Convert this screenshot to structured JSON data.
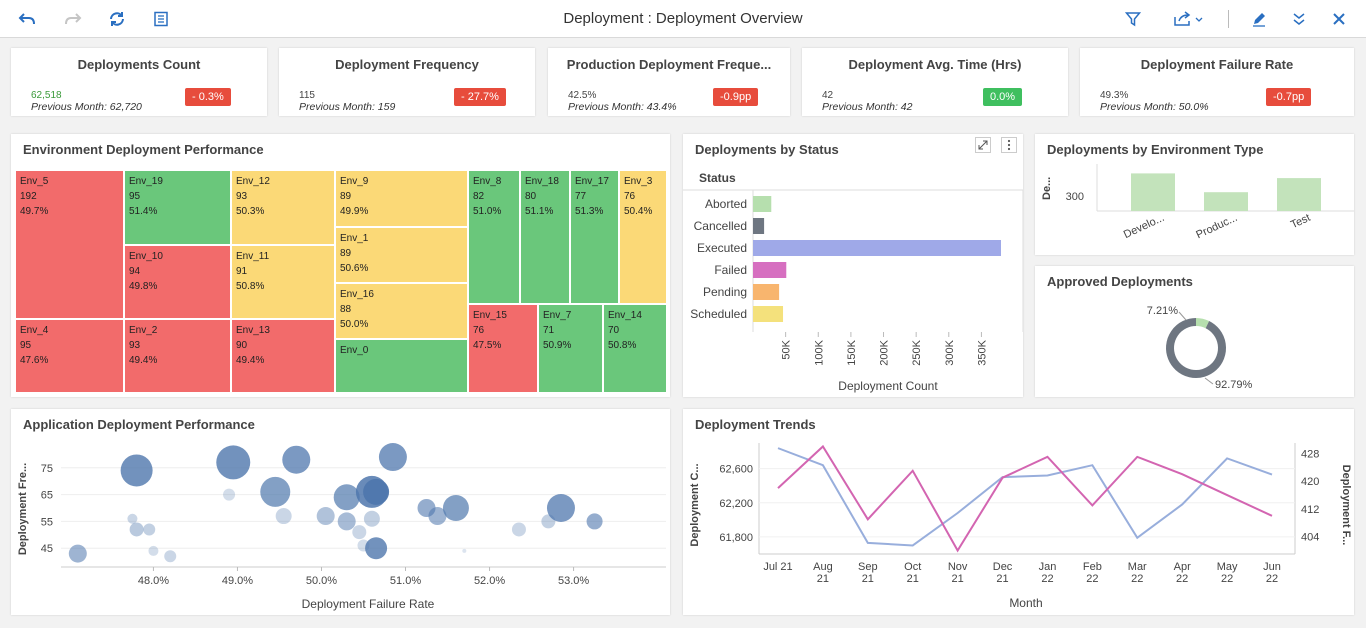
{
  "header": {
    "title": "Deployment : Deployment Overview"
  },
  "kpis": [
    {
      "title": "Deployments Count",
      "value": "62,518",
      "previous": "Previous Month: 62,720",
      "delta": "- 0.3%",
      "delta_color": "#e74c3c",
      "value_color": "#3a9a3a"
    },
    {
      "title": "Deployment Frequency",
      "value": "115",
      "previous": "Previous Month: 159",
      "delta": "- 27.7%",
      "delta_color": "#e74c3c",
      "value_color": "#444"
    },
    {
      "title": "Production Deployment Freque...",
      "value": "42.5%",
      "previous": "Previous Month: 43.4%",
      "delta": "-0.9pp",
      "delta_color": "#e74c3c",
      "value_color": "#444"
    },
    {
      "title": "Deployment Avg. Time (Hrs)",
      "value": "42",
      "previous": "Previous Month: 42",
      "delta": "0.0%",
      "delta_color": "#3fbf5f",
      "value_color": "#444"
    },
    {
      "title": "Deployment Failure Rate",
      "value": "49.3%",
      "previous": "Previous Month: 50.0%",
      "delta": "-0.7pp",
      "delta_color": "#e74c3c",
      "value_color": "#444"
    }
  ],
  "env_perf": {
    "title": "Environment Deployment Performance",
    "cells": [
      {
        "name": "Env_5",
        "count": "192",
        "rate": "49.7%"
      },
      {
        "name": "Env_19",
        "count": "95",
        "rate": "51.4%"
      },
      {
        "name": "Env_10",
        "count": "94",
        "rate": "49.8%"
      },
      {
        "name": "Env_4",
        "count": "95",
        "rate": "47.6%"
      },
      {
        "name": "Env_2",
        "count": "93",
        "rate": "49.4%"
      },
      {
        "name": "Env_12",
        "count": "93",
        "rate": "50.3%"
      },
      {
        "name": "Env_11",
        "count": "91",
        "rate": "50.8%"
      },
      {
        "name": "Env_13",
        "count": "90",
        "rate": "49.4%"
      },
      {
        "name": "Env_9",
        "count": "89",
        "rate": "49.9%"
      },
      {
        "name": "Env_1",
        "count": "89",
        "rate": "50.6%"
      },
      {
        "name": "Env_16",
        "count": "88",
        "rate": "50.0%"
      },
      {
        "name": "Env_0",
        "count": "",
        "rate": ""
      },
      {
        "name": "Env_8",
        "count": "82",
        "rate": "51.0%"
      },
      {
        "name": "Env_18",
        "count": "80",
        "rate": "51.1%"
      },
      {
        "name": "Env_17",
        "count": "77",
        "rate": "51.3%"
      },
      {
        "name": "Env_3",
        "count": "76",
        "rate": "50.4%"
      },
      {
        "name": "Env_15",
        "count": "76",
        "rate": "47.5%"
      },
      {
        "name": "Env_7",
        "count": "71",
        "rate": "50.9%"
      },
      {
        "name": "Env_14",
        "count": "70",
        "rate": "50.8%"
      }
    ]
  },
  "status_chart": {
    "title": "Deployments by Status",
    "column_header": "Status",
    "xlabel": "Deployment Count",
    "ticks": [
      "50K",
      "100K",
      "150K",
      "200K",
      "250K",
      "300K",
      "350K"
    ]
  },
  "env_type": {
    "title": "Deployments by Environment Type",
    "ylabel": "De...",
    "ytick": "300",
    "categories": [
      "Develo...",
      "Produc...",
      "Test"
    ]
  },
  "approved": {
    "title": "Approved Deployments",
    "small_label": "7.21%",
    "large_label": "92.79%"
  },
  "app_perf": {
    "title": "Application Deployment Performance",
    "ylabel": "Deployment Fre...",
    "xlabel": "Deployment Failure Rate",
    "yticks": [
      "75",
      "65",
      "55",
      "45"
    ],
    "xticks": [
      "48.0%",
      "49.0%",
      "50.0%",
      "51.0%",
      "52.0%",
      "53.0%"
    ]
  },
  "trends": {
    "title": "Deployment Trends",
    "ylabel_left": "Deployment C...",
    "ylabel_right": "Deployment F...",
    "xlabel": "Month",
    "left_ticks": [
      "62,600",
      "62,200",
      "61,800"
    ],
    "right_ticks": [
      "428",
      "420",
      "412",
      "404"
    ],
    "months": [
      [
        "Jul 21",
        ""
      ],
      [
        "Aug",
        "21"
      ],
      [
        "Sep",
        "21"
      ],
      [
        "Oct",
        "21"
      ],
      [
        "Nov",
        "21"
      ],
      [
        "Dec",
        "21"
      ],
      [
        "Jan",
        "22"
      ],
      [
        "Feb",
        "22"
      ],
      [
        "Mar",
        "22"
      ],
      [
        "Apr",
        "22"
      ],
      [
        "May",
        "22"
      ],
      [
        "Jun",
        "22"
      ]
    ]
  },
  "chart_data": [
    {
      "type": "bar",
      "title": "Deployments by Status",
      "orientation": "horizontal",
      "categories": [
        "Aborted",
        "Cancelled",
        "Executed",
        "Failed",
        "Pending",
        "Scheduled"
      ],
      "values": [
        28000,
        17000,
        380000,
        51000,
        40000,
        46000
      ],
      "colors": [
        "#b6dfae",
        "#6e7681",
        "#9fa9e8",
        "#d66fc0",
        "#f8b56e",
        "#f4e17c"
      ],
      "xlabel": "Deployment Count",
      "xlim": [
        0,
        380000
      ]
    },
    {
      "type": "bar",
      "title": "Deployments by Environment Type",
      "categories": [
        "Develo...",
        "Produc...",
        "Test"
      ],
      "values": [
        330,
        290,
        320
      ],
      "ylabel": "De...",
      "ylim": [
        250,
        350
      ]
    },
    {
      "type": "pie",
      "title": "Approved Deployments",
      "labels": [
        "7.21%",
        "92.79%"
      ],
      "values": [
        7.21,
        92.79
      ],
      "colors": [
        "#b6dfae",
        "#6e7681"
      ]
    },
    {
      "type": "scatter",
      "title": "Application Deployment Performance",
      "xlabel": "Deployment Failure Rate",
      "ylabel": "Deployment Fre...",
      "xlim": [
        46.9,
        54.1
      ],
      "ylim": [
        38,
        82
      ],
      "points": [
        {
          "x": 47.1,
          "y": 43,
          "s": 9,
          "o": 0.55
        },
        {
          "x": 47.8,
          "y": 74,
          "s": 16,
          "o": 0.8
        },
        {
          "x": 47.75,
          "y": 56,
          "s": 5,
          "o": 0.3
        },
        {
          "x": 47.8,
          "y": 52,
          "s": 7,
          "o": 0.4
        },
        {
          "x": 47.95,
          "y": 52,
          "s": 6,
          "o": 0.35
        },
        {
          "x": 48.0,
          "y": 44,
          "s": 5,
          "o": 0.25
        },
        {
          "x": 48.2,
          "y": 42,
          "s": 6,
          "o": 0.3
        },
        {
          "x": 48.9,
          "y": 65,
          "s": 6,
          "o": 0.25
        },
        {
          "x": 48.95,
          "y": 77,
          "s": 17,
          "o": 0.8
        },
        {
          "x": 49.45,
          "y": 66,
          "s": 15,
          "o": 0.7
        },
        {
          "x": 49.55,
          "y": 57,
          "s": 8,
          "o": 0.3
        },
        {
          "x": 49.7,
          "y": 78,
          "s": 14,
          "o": 0.75
        },
        {
          "x": 50.05,
          "y": 57,
          "s": 9,
          "o": 0.45
        },
        {
          "x": 50.3,
          "y": 55,
          "s": 9,
          "o": 0.5
        },
        {
          "x": 50.3,
          "y": 64,
          "s": 13,
          "o": 0.7
        },
        {
          "x": 50.45,
          "y": 51,
          "s": 7,
          "o": 0.3
        },
        {
          "x": 50.5,
          "y": 46,
          "s": 6,
          "o": 0.25
        },
        {
          "x": 50.6,
          "y": 66,
          "s": 16,
          "o": 0.85
        },
        {
          "x": 50.6,
          "y": 56,
          "s": 8,
          "o": 0.35
        },
        {
          "x": 50.65,
          "y": 45,
          "s": 11,
          "o": 0.8
        },
        {
          "x": 50.65,
          "y": 66,
          "s": 13,
          "o": 0.95
        },
        {
          "x": 50.85,
          "y": 79,
          "s": 14,
          "o": 0.75
        },
        {
          "x": 51.25,
          "y": 60,
          "s": 9,
          "o": 0.6
        },
        {
          "x": 51.38,
          "y": 57,
          "s": 9,
          "o": 0.55
        },
        {
          "x": 51.6,
          "y": 60,
          "s": 13,
          "o": 0.7
        },
        {
          "x": 51.7,
          "y": 44,
          "s": 2,
          "o": 0.2
        },
        {
          "x": 52.35,
          "y": 52,
          "s": 7,
          "o": 0.3
        },
        {
          "x": 52.7,
          "y": 55,
          "s": 7,
          "o": 0.35
        },
        {
          "x": 52.85,
          "y": 60,
          "s": 14,
          "o": 0.75
        },
        {
          "x": 53.25,
          "y": 55,
          "s": 8,
          "o": 0.6
        }
      ]
    },
    {
      "type": "line",
      "title": "Deployment Trends",
      "x": [
        "Jul 21",
        "Aug 21",
        "Sep 21",
        "Oct 21",
        "Nov 21",
        "Dec 21",
        "Jan 22",
        "Feb 22",
        "Mar 22",
        "Apr 22",
        "May 22",
        "Jun 22"
      ],
      "series": [
        {
          "name": "Deployment Count",
          "axis": "left",
          "color": "#98aedc",
          "values": [
            62840,
            62640,
            61730,
            61700,
            62080,
            62500,
            62520,
            62640,
            61790,
            62180,
            62720,
            62530
          ],
          "ylim": [
            61600,
            62900
          ]
        },
        {
          "name": "Deployment Frequency",
          "axis": "right",
          "color": "#d365b1",
          "values": [
            418,
            430,
            409,
            423,
            400,
            421,
            427,
            413,
            427,
            422,
            416,
            410
          ],
          "ylim": [
            399,
            431
          ]
        }
      ],
      "xlabel": "Month"
    }
  ]
}
